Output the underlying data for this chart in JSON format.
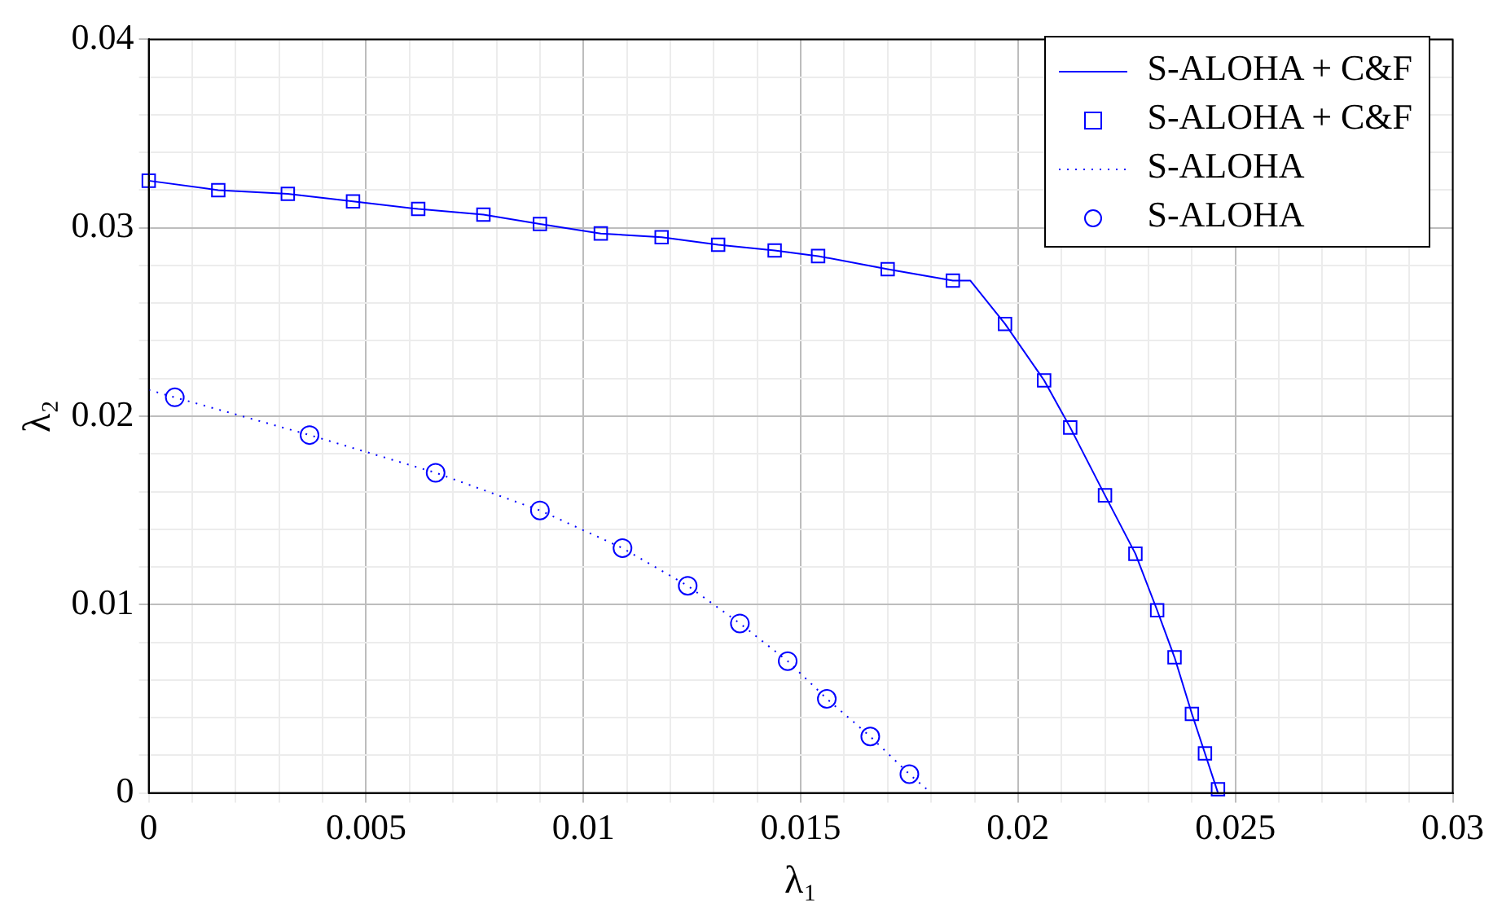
{
  "chart_data": {
    "type": "line",
    "xlabel": "λ₁",
    "ylabel": "λ₂",
    "xlim": [
      0,
      0.03
    ],
    "ylim": [
      0,
      0.04
    ],
    "xticks": [
      0,
      {
        "value": 0.001,
        "label": null
      },
      {
        "value": 0.002,
        "label": null
      },
      {
        "value": 0.003,
        "label": null
      },
      {
        "value": 0.004,
        "label": null
      },
      0.005,
      {
        "value": 0.006,
        "label": null
      },
      {
        "value": 0.007,
        "label": null
      },
      {
        "value": 0.008,
        "label": null
      },
      {
        "value": 0.009,
        "label": null
      },
      0.01,
      {
        "value": 0.011,
        "label": null
      },
      {
        "value": 0.012,
        "label": null
      },
      {
        "value": 0.013,
        "label": null
      },
      {
        "value": 0.014,
        "label": null
      },
      0.015,
      {
        "value": 0.016,
        "label": null
      },
      {
        "value": 0.017,
        "label": null
      },
      {
        "value": 0.018,
        "label": null
      },
      {
        "value": 0.019,
        "label": null
      },
      0.02,
      {
        "value": 0.021,
        "label": null
      },
      {
        "value": 0.022,
        "label": null
      },
      {
        "value": 0.023,
        "label": null
      },
      {
        "value": 0.024,
        "label": null
      },
      0.025,
      {
        "value": 0.026,
        "label": null
      },
      {
        "value": 0.027,
        "label": null
      },
      {
        "value": 0.028,
        "label": null
      },
      {
        "value": 0.029,
        "label": null
      },
      0.03
    ],
    "yticks": [
      0,
      {
        "value": 0.002,
        "label": null
      },
      {
        "value": 0.004,
        "label": null
      },
      {
        "value": 0.006,
        "label": null
      },
      {
        "value": 0.008,
        "label": null
      },
      0.01,
      {
        "value": 0.012,
        "label": null
      },
      {
        "value": 0.014,
        "label": null
      },
      {
        "value": 0.016,
        "label": null
      },
      {
        "value": 0.018,
        "label": null
      },
      0.02,
      {
        "value": 0.022,
        "label": null
      },
      {
        "value": 0.024,
        "label": null
      },
      {
        "value": 0.026,
        "label": null
      },
      {
        "value": 0.028,
        "label": null
      },
      0.03,
      {
        "value": 0.032,
        "label": null
      },
      {
        "value": 0.034,
        "label": null
      },
      {
        "value": 0.036,
        "label": null
      },
      {
        "value": 0.038,
        "label": null
      },
      0.04
    ],
    "grid": true,
    "legend": "top right",
    "series": [
      {
        "name": "S-ALOHA + C&F",
        "type": "line",
        "marker": "none",
        "line_style": "solid",
        "color": "#0000ff",
        "x": [
          0,
          0.0016,
          0.0032,
          0.0047,
          0.0062,
          0.0077,
          0.009,
          0.0104,
          0.0118,
          0.0131,
          0.0144,
          0.0154,
          0.017,
          0.0185,
          0.0189,
          0.0197,
          0.0206,
          0.0212,
          0.022,
          0.0227,
          0.0232,
          0.0236,
          0.024,
          0.0243,
          0.0246
        ],
        "values": [
          0.0325,
          0.032,
          0.0318,
          0.0314,
          0.031,
          0.0307,
          0.0302,
          0.0297,
          0.0295,
          0.0291,
          0.0288,
          0.0285,
          0.0278,
          0.0272,
          0.0272,
          0.0249,
          0.0219,
          0.0194,
          0.0158,
          0.0127,
          0.0097,
          0.0072,
          0.0042,
          0.0021,
          0
        ]
      },
      {
        "name": "S-ALOHA + C&F",
        "type": "scatter",
        "marker": "square",
        "color": "#0000ff",
        "x": [
          0,
          0.0016,
          0.0032,
          0.0047,
          0.0062,
          0.0077,
          0.009,
          0.0104,
          0.0118,
          0.0131,
          0.0144,
          0.0154,
          0.017,
          0.0185,
          0.0197,
          0.0206,
          0.0212,
          0.022,
          0.0227,
          0.0232,
          0.0236,
          0.024,
          0.0243,
          0.0246
        ],
        "values": [
          0.0325,
          0.032,
          0.0318,
          0.0314,
          0.031,
          0.0307,
          0.0302,
          0.0297,
          0.0295,
          0.0291,
          0.0288,
          0.0285,
          0.0278,
          0.0272,
          0.0249,
          0.0219,
          0.0194,
          0.0158,
          0.0127,
          0.0097,
          0.0072,
          0.0042,
          0.0021,
          0.0002
        ]
      },
      {
        "name": "S-ALOHA",
        "type": "line",
        "marker": "none",
        "line_style": "dotted",
        "color": "#0000ff",
        "x": [
          0,
          0.0006,
          0.0037,
          0.0066,
          0.009,
          0.0109,
          0.0124,
          0.0136,
          0.0147,
          0.0156,
          0.0166,
          0.0175,
          0.018
        ],
        "values": [
          0.0214,
          0.021,
          0.019,
          0.017,
          0.015,
          0.013,
          0.011,
          0.009,
          0.007,
          0.005,
          0.003,
          0.001,
          0
        ]
      },
      {
        "name": "S-ALOHA",
        "type": "scatter",
        "marker": "circle",
        "color": "#0000ff",
        "x": [
          0.0006,
          0.0037,
          0.0066,
          0.009,
          0.0109,
          0.0124,
          0.0136,
          0.0147,
          0.0156,
          0.0166,
          0.0175
        ],
        "values": [
          0.021,
          0.019,
          0.017,
          0.015,
          0.013,
          0.011,
          0.009,
          0.007,
          0.005,
          0.003,
          0.001
        ]
      }
    ]
  }
}
